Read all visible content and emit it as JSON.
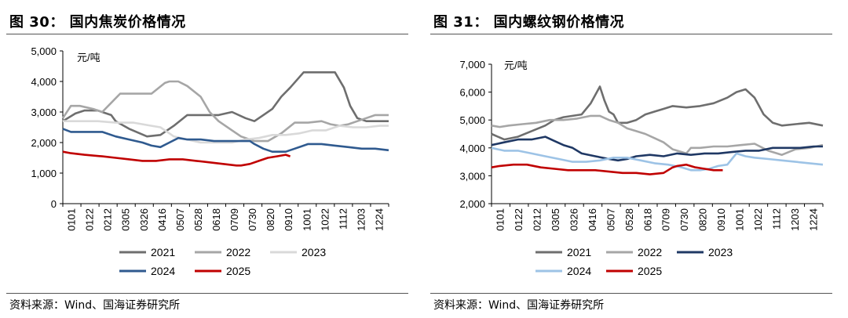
{
  "charts": [
    {
      "title": "图 30：  国内焦炭价格情况",
      "source": "资料来源：Wind、国海证券研究所"
    },
    {
      "title": "图 31：  国内螺纹钢价格情况",
      "source": "资料来源：Wind、国海证券研究所"
    }
  ],
  "chart_data": [
    {
      "type": "line",
      "title": "国内焦炭价格情况",
      "ylabel": "元/吨",
      "ylim": [
        0,
        5000
      ],
      "yticks": [
        "0",
        "1,000",
        "2,000",
        "3,000",
        "4,000",
        "5,000"
      ],
      "yticks_values": [
        0,
        1000,
        2000,
        3000,
        4000,
        5000
      ],
      "x_range": [
        1,
        365
      ],
      "xticks": [
        "0101",
        "0122",
        "0212",
        "0305",
        "0326",
        "0416",
        "0507",
        "0528",
        "0618",
        "0709",
        "0730",
        "0820",
        "0910",
        "1001",
        "1022",
        "1112",
        "1203",
        "1224"
      ],
      "series": [
        {
          "name": "2021",
          "color": "#6E6E6E",
          "x": [
            1,
            15,
            25,
            40,
            55,
            60,
            75,
            95,
            110,
            125,
            140,
            155,
            175,
            190,
            205,
            215,
            225,
            235,
            245,
            255,
            270,
            280,
            295,
            305,
            315,
            322,
            330,
            340,
            350,
            365
          ],
          "values": [
            2700,
            2950,
            3050,
            3050,
            2900,
            2700,
            2450,
            2200,
            2250,
            2550,
            2900,
            2900,
            2900,
            3000,
            2800,
            2700,
            2900,
            3100,
            3500,
            3800,
            4300,
            4300,
            4300,
            4300,
            3800,
            3200,
            2800,
            2700,
            2700,
            2700
          ]
        },
        {
          "name": "2022",
          "color": "#A6A6A6",
          "x": [
            1,
            10,
            20,
            35,
            45,
            55,
            65,
            75,
            85,
            100,
            115,
            120,
            130,
            140,
            155,
            165,
            175,
            190,
            200,
            215,
            230,
            245,
            260,
            275,
            290,
            300,
            310,
            320,
            330,
            340,
            350,
            365
          ],
          "values": [
            2800,
            3200,
            3200,
            3100,
            3000,
            3300,
            3600,
            3600,
            3600,
            3600,
            3950,
            4000,
            4000,
            3850,
            3500,
            3000,
            2700,
            2400,
            2200,
            2050,
            2050,
            2300,
            2650,
            2650,
            2700,
            2600,
            2550,
            2600,
            2700,
            2800,
            2900,
            2900
          ]
        },
        {
          "name": "2023",
          "color": "#D9D9D9",
          "x": [
            1,
            20,
            40,
            60,
            80,
            100,
            110,
            125,
            140,
            155,
            165,
            175,
            190,
            205,
            220,
            235,
            250,
            265,
            280,
            295,
            310,
            325,
            340,
            355,
            365
          ],
          "values": [
            2700,
            2700,
            2700,
            2650,
            2650,
            2550,
            2500,
            2200,
            2100,
            2000,
            2000,
            2000,
            2000,
            2100,
            2150,
            2250,
            2250,
            2300,
            2400,
            2400,
            2550,
            2500,
            2500,
            2550,
            2550
          ]
        },
        {
          "name": "2024",
          "color": "#2F5A8F",
          "x": [
            1,
            10,
            25,
            45,
            60,
            75,
            90,
            100,
            110,
            120,
            130,
            140,
            155,
            170,
            185,
            200,
            210,
            215,
            225,
            235,
            250,
            260,
            275,
            290,
            305,
            320,
            335,
            350,
            365
          ],
          "values": [
            2450,
            2350,
            2350,
            2350,
            2200,
            2100,
            2000,
            1900,
            1850,
            2000,
            2150,
            2100,
            2100,
            2050,
            2050,
            2050,
            2050,
            1950,
            1800,
            1700,
            1700,
            1800,
            1950,
            1950,
            1900,
            1850,
            1800,
            1800,
            1750
          ]
        },
        {
          "name": "2025",
          "color": "#C00000",
          "x": [
            1,
            10,
            25,
            45,
            60,
            75,
            90,
            105,
            120,
            135,
            150,
            165,
            180,
            195,
            200,
            210,
            220,
            230,
            240,
            250,
            255
          ],
          "values": [
            1700,
            1650,
            1600,
            1550,
            1500,
            1450,
            1400,
            1400,
            1450,
            1450,
            1400,
            1350,
            1300,
            1250,
            1250,
            1300,
            1400,
            1500,
            1550,
            1600,
            1550
          ]
        }
      ]
    },
    {
      "type": "line",
      "title": "国内螺纹钢价格情况",
      "ylabel": "元/吨",
      "ylim": [
        2000,
        7000
      ],
      "yticks": [
        "2,000",
        "3,000",
        "4,000",
        "5,000",
        "6,000",
        "7,000"
      ],
      "yticks_values": [
        2000,
        3000,
        4000,
        5000,
        6000,
        7000
      ],
      "x_range": [
        1,
        365
      ],
      "xticks": [
        "0101",
        "0122",
        "0212",
        "0305",
        "0326",
        "0416",
        "0507",
        "0528",
        "0618",
        "0709",
        "0730",
        "0820",
        "0910",
        "1001",
        "1022",
        "1112",
        "1203",
        "1224"
      ],
      "series": [
        {
          "name": "2021",
          "color": "#6E6E6E",
          "x": [
            1,
            15,
            30,
            45,
            60,
            70,
            80,
            90,
            100,
            110,
            120,
            125,
            130,
            135,
            140,
            150,
            160,
            170,
            180,
            190,
            200,
            215,
            230,
            245,
            260,
            270,
            280,
            290,
            300,
            310,
            320,
            335,
            350,
            365
          ],
          "values": [
            4500,
            4300,
            4400,
            4600,
            4800,
            5000,
            5100,
            5150,
            5200,
            5600,
            6200,
            5700,
            5300,
            5200,
            4900,
            4900,
            5000,
            5200,
            5300,
            5400,
            5500,
            5450,
            5500,
            5600,
            5800,
            6000,
            6100,
            5800,
            5200,
            4900,
            4800,
            4850,
            4900,
            4800
          ]
        },
        {
          "name": "2022",
          "color": "#A6A6A6",
          "x": [
            1,
            10,
            20,
            35,
            50,
            65,
            80,
            95,
            110,
            120,
            130,
            140,
            150,
            160,
            170,
            180,
            190,
            200,
            210,
            215,
            220,
            230,
            245,
            260,
            275,
            290,
            305,
            320,
            335,
            350,
            365
          ],
          "values": [
            4800,
            4750,
            4800,
            4850,
            4900,
            5000,
            5000,
            5050,
            5150,
            5150,
            5000,
            4900,
            4700,
            4600,
            4500,
            4350,
            4200,
            3950,
            3850,
            3800,
            4000,
            4000,
            4050,
            4050,
            4100,
            4150,
            3900,
            3750,
            3950,
            4000,
            4100
          ]
        },
        {
          "name": "2023",
          "color": "#1F3864",
          "x": [
            1,
            15,
            30,
            45,
            60,
            70,
            80,
            90,
            100,
            115,
            130,
            140,
            150,
            160,
            175,
            190,
            205,
            220,
            235,
            250,
            265,
            280,
            295,
            310,
            325,
            340,
            355,
            365
          ],
          "values": [
            4100,
            4200,
            4300,
            4300,
            4400,
            4250,
            4100,
            4000,
            3800,
            3700,
            3600,
            3550,
            3600,
            3700,
            3750,
            3700,
            3800,
            3750,
            3800,
            3800,
            3850,
            3900,
            3900,
            4000,
            4000,
            4000,
            4050,
            4050
          ]
        },
        {
          "name": "2024",
          "color": "#9DC3E6",
          "x": [
            1,
            15,
            30,
            45,
            60,
            75,
            90,
            105,
            120,
            135,
            150,
            165,
            180,
            195,
            210,
            220,
            230,
            240,
            250,
            260,
            265,
            270,
            280,
            290,
            305,
            320,
            335,
            350,
            365
          ],
          "values": [
            4000,
            3900,
            3900,
            3800,
            3700,
            3600,
            3500,
            3500,
            3550,
            3650,
            3650,
            3550,
            3450,
            3400,
            3300,
            3200,
            3200,
            3250,
            3350,
            3400,
            3600,
            3800,
            3700,
            3650,
            3600,
            3550,
            3500,
            3450,
            3400
          ]
        },
        {
          "name": "2025",
          "color": "#C00000",
          "x": [
            1,
            10,
            25,
            40,
            55,
            70,
            85,
            100,
            115,
            130,
            145,
            160,
            175,
            190,
            200,
            205,
            215,
            225,
            235,
            245,
            255
          ],
          "values": [
            3300,
            3350,
            3400,
            3400,
            3300,
            3250,
            3200,
            3200,
            3200,
            3150,
            3100,
            3100,
            3050,
            3100,
            3300,
            3350,
            3400,
            3300,
            3250,
            3200,
            3200
          ]
        }
      ]
    }
  ]
}
